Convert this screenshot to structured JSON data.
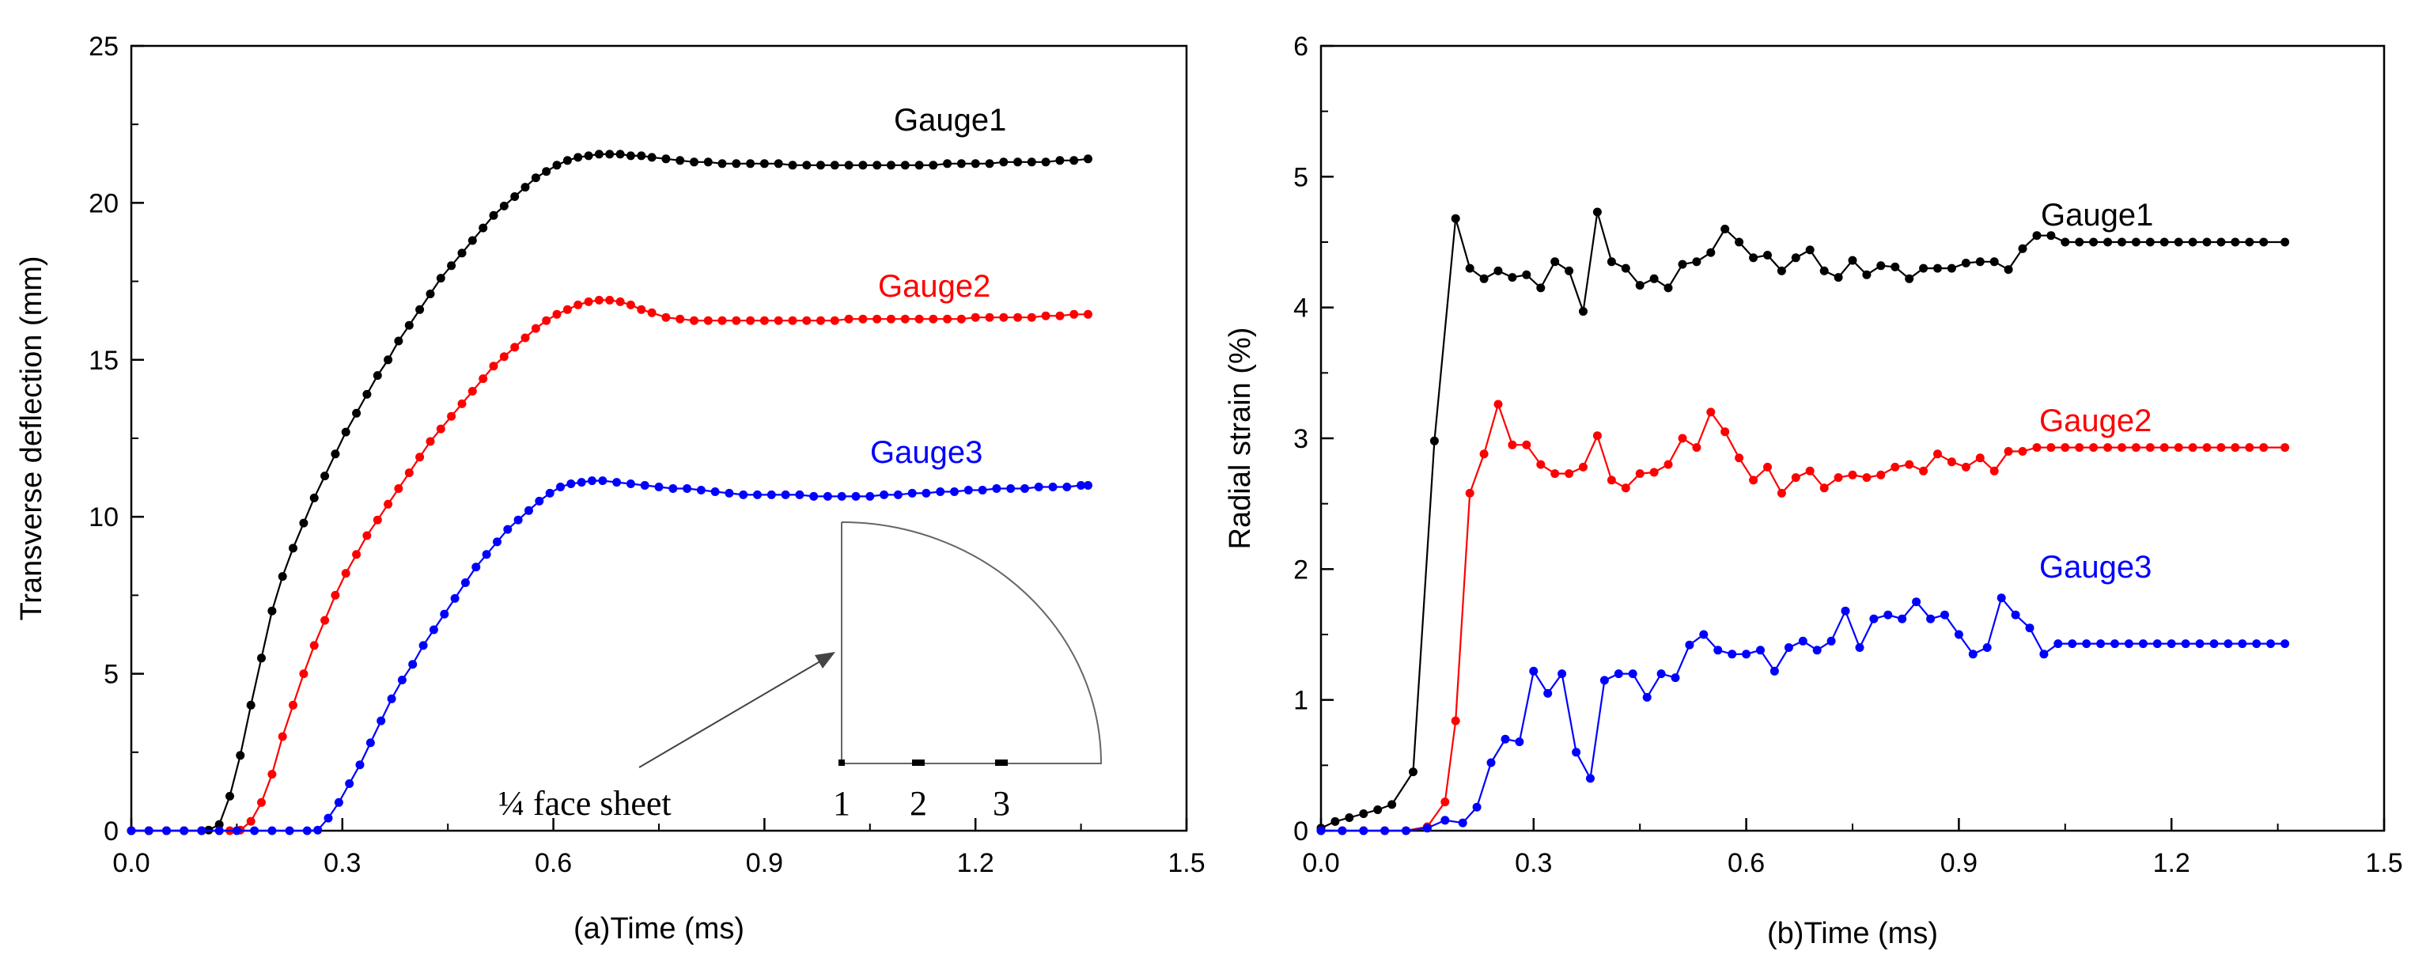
{
  "chart_data": [
    {
      "type": "line",
      "panel": "a",
      "xlabel": "(a)Time (ms)",
      "ylabel": "Transverse deflection (mm)",
      "xlim": [
        0.0,
        1.5
      ],
      "ylim": [
        0,
        25
      ],
      "xticks": [
        "0.0",
        "0.3",
        "0.6",
        "0.9",
        "1.2",
        "1.5"
      ],
      "yticks": [
        "0",
        "5",
        "10",
        "15",
        "20",
        "25"
      ],
      "grid": false,
      "series": [
        {
          "name": "Gauge1",
          "color": "#000000",
          "x": [
            0.0,
            0.025,
            0.05,
            0.075,
            0.1,
            0.11,
            0.125,
            0.14,
            0.155,
            0.17,
            0.185,
            0.2,
            0.215,
            0.23,
            0.245,
            0.26,
            0.275,
            0.29,
            0.305,
            0.32,
            0.335,
            0.35,
            0.365,
            0.38,
            0.395,
            0.41,
            0.425,
            0.44,
            0.455,
            0.47,
            0.485,
            0.5,
            0.515,
            0.53,
            0.545,
            0.56,
            0.575,
            0.59,
            0.605,
            0.62,
            0.635,
            0.65,
            0.665,
            0.68,
            0.695,
            0.71,
            0.725,
            0.74,
            0.76,
            0.78,
            0.8,
            0.82,
            0.84,
            0.86,
            0.88,
            0.9,
            0.92,
            0.94,
            0.96,
            0.98,
            1.0,
            1.02,
            1.04,
            1.06,
            1.08,
            1.1,
            1.12,
            1.14,
            1.16,
            1.18,
            1.2,
            1.22,
            1.24,
            1.26,
            1.28,
            1.3,
            1.32,
            1.34,
            1.36
          ],
          "y": [
            0,
            0,
            0,
            0,
            0,
            0.02,
            0.2,
            1.1,
            2.4,
            4.0,
            5.5,
            7.0,
            8.1,
            9.0,
            9.8,
            10.6,
            11.3,
            12.0,
            12.7,
            13.3,
            13.9,
            14.5,
            15.0,
            15.6,
            16.1,
            16.6,
            17.1,
            17.6,
            18.0,
            18.4,
            18.8,
            19.2,
            19.6,
            19.9,
            20.2,
            20.5,
            20.8,
            21.0,
            21.2,
            21.35,
            21.45,
            21.5,
            21.55,
            21.55,
            21.55,
            21.5,
            21.5,
            21.45,
            21.4,
            21.35,
            21.3,
            21.3,
            21.25,
            21.25,
            21.25,
            21.25,
            21.25,
            21.2,
            21.2,
            21.2,
            21.2,
            21.2,
            21.2,
            21.2,
            21.2,
            21.2,
            21.2,
            21.2,
            21.25,
            21.25,
            21.25,
            21.25,
            21.3,
            21.3,
            21.3,
            21.3,
            21.35,
            21.35,
            21.4
          ]
        },
        {
          "name": "Gauge2",
          "color": "#ff0000",
          "x": [
            0.0,
            0.025,
            0.05,
            0.075,
            0.1,
            0.125,
            0.14,
            0.155,
            0.17,
            0.185,
            0.2,
            0.215,
            0.23,
            0.245,
            0.26,
            0.275,
            0.29,
            0.305,
            0.32,
            0.335,
            0.35,
            0.365,
            0.38,
            0.395,
            0.41,
            0.425,
            0.44,
            0.455,
            0.47,
            0.485,
            0.5,
            0.515,
            0.53,
            0.545,
            0.56,
            0.575,
            0.59,
            0.605,
            0.62,
            0.635,
            0.65,
            0.665,
            0.68,
            0.695,
            0.71,
            0.725,
            0.74,
            0.76,
            0.78,
            0.8,
            0.82,
            0.84,
            0.86,
            0.88,
            0.9,
            0.92,
            0.94,
            0.96,
            0.98,
            1.0,
            1.02,
            1.04,
            1.06,
            1.08,
            1.1,
            1.12,
            1.14,
            1.16,
            1.18,
            1.2,
            1.22,
            1.24,
            1.26,
            1.28,
            1.3,
            1.32,
            1.34,
            1.36
          ],
          "y": [
            0,
            0,
            0,
            0,
            0,
            0,
            0,
            0.02,
            0.3,
            0.9,
            1.8,
            3.0,
            4.0,
            5.0,
            5.9,
            6.7,
            7.5,
            8.2,
            8.8,
            9.4,
            9.9,
            10.4,
            10.9,
            11.4,
            11.9,
            12.4,
            12.8,
            13.2,
            13.6,
            14.0,
            14.4,
            14.8,
            15.1,
            15.4,
            15.7,
            16.0,
            16.25,
            16.45,
            16.6,
            16.75,
            16.85,
            16.9,
            16.9,
            16.85,
            16.75,
            16.6,
            16.5,
            16.35,
            16.3,
            16.25,
            16.25,
            16.25,
            16.25,
            16.25,
            16.25,
            16.25,
            16.25,
            16.25,
            16.25,
            16.25,
            16.3,
            16.3,
            16.3,
            16.3,
            16.3,
            16.3,
            16.3,
            16.3,
            16.3,
            16.35,
            16.35,
            16.35,
            16.35,
            16.35,
            16.4,
            16.4,
            16.45,
            16.45
          ]
        },
        {
          "name": "Gauge3",
          "color": "#0000ff",
          "x": [
            0.0,
            0.025,
            0.05,
            0.075,
            0.1,
            0.125,
            0.15,
            0.175,
            0.2,
            0.225,
            0.25,
            0.265,
            0.28,
            0.295,
            0.31,
            0.325,
            0.34,
            0.355,
            0.37,
            0.385,
            0.4,
            0.415,
            0.43,
            0.445,
            0.46,
            0.475,
            0.49,
            0.505,
            0.52,
            0.535,
            0.55,
            0.565,
            0.58,
            0.595,
            0.61,
            0.625,
            0.64,
            0.655,
            0.67,
            0.69,
            0.71,
            0.73,
            0.75,
            0.77,
            0.79,
            0.81,
            0.83,
            0.85,
            0.87,
            0.89,
            0.91,
            0.93,
            0.95,
            0.97,
            0.99,
            1.01,
            1.03,
            1.05,
            1.07,
            1.09,
            1.11,
            1.13,
            1.15,
            1.17,
            1.19,
            1.21,
            1.23,
            1.25,
            1.27,
            1.29,
            1.31,
            1.33,
            1.35,
            1.36
          ],
          "y": [
            0,
            0,
            0,
            0,
            0,
            0,
            0,
            0,
            0,
            0,
            0,
            0.02,
            0.4,
            0.9,
            1.5,
            2.1,
            2.8,
            3.5,
            4.2,
            4.8,
            5.3,
            5.9,
            6.4,
            6.9,
            7.4,
            7.9,
            8.4,
            8.8,
            9.2,
            9.6,
            9.9,
            10.2,
            10.5,
            10.75,
            10.95,
            11.05,
            11.1,
            11.15,
            11.15,
            11.1,
            11.05,
            11.0,
            10.95,
            10.9,
            10.9,
            10.85,
            10.8,
            10.75,
            10.7,
            10.7,
            10.7,
            10.7,
            10.7,
            10.65,
            10.65,
            10.65,
            10.65,
            10.65,
            10.7,
            10.7,
            10.75,
            10.75,
            10.8,
            10.8,
            10.85,
            10.85,
            10.9,
            10.9,
            10.9,
            10.95,
            10.95,
            10.95,
            11.0,
            11.0
          ]
        }
      ],
      "legend": [
        "Gauge1",
        "Gauge2",
        "Gauge3"
      ],
      "annotation": {
        "text": "¼ face sheet",
        "gauge_labels": [
          "1",
          "2",
          "3"
        ]
      }
    },
    {
      "type": "line",
      "panel": "b",
      "xlabel": "(b)Time (ms)",
      "ylabel": "Radial strain (%)",
      "xlim": [
        0.0,
        1.5
      ],
      "ylim": [
        0,
        6
      ],
      "xticks": [
        "0.0",
        "0.3",
        "0.6",
        "0.9",
        "1.2",
        "1.5"
      ],
      "yticks": [
        "0",
        "1",
        "2",
        "3",
        "4",
        "5",
        "6"
      ],
      "grid": false,
      "series": [
        {
          "name": "Gauge1",
          "color": "#000000",
          "x": [
            0.0,
            0.02,
            0.04,
            0.06,
            0.08,
            0.1,
            0.13,
            0.16,
            0.19,
            0.21,
            0.23,
            0.25,
            0.27,
            0.29,
            0.31,
            0.33,
            0.35,
            0.37,
            0.39,
            0.41,
            0.43,
            0.45,
            0.47,
            0.49,
            0.51,
            0.53,
            0.55,
            0.57,
            0.59,
            0.61,
            0.63,
            0.65,
            0.67,
            0.69,
            0.71,
            0.73,
            0.75,
            0.77,
            0.79,
            0.81,
            0.83,
            0.85,
            0.87,
            0.89,
            0.91,
            0.93,
            0.95,
            0.97,
            0.99,
            1.01,
            1.03,
            1.05,
            1.07,
            1.09,
            1.11,
            1.13,
            1.15,
            1.17,
            1.19,
            1.21,
            1.23,
            1.25,
            1.27,
            1.29,
            1.31,
            1.33,
            1.36
          ],
          "y": [
            0.02,
            0.07,
            0.1,
            0.13,
            0.16,
            0.2,
            0.45,
            2.98,
            4.68,
            4.3,
            4.22,
            4.28,
            4.23,
            4.25,
            4.15,
            4.35,
            4.28,
            3.97,
            4.73,
            4.35,
            4.3,
            4.17,
            4.22,
            4.15,
            4.33,
            4.35,
            4.42,
            4.6,
            4.5,
            4.38,
            4.4,
            4.28,
            4.38,
            4.44,
            4.28,
            4.23,
            4.36,
            4.25,
            4.32,
            4.31,
            4.22,
            4.3,
            4.3,
            4.3,
            4.34,
            4.35,
            4.35,
            4.29,
            4.45,
            4.55,
            4.55,
            4.5,
            4.5,
            4.5,
            4.5,
            4.5,
            4.5,
            4.5,
            4.5,
            4.5,
            4.5,
            4.5,
            4.5,
            4.5,
            4.5,
            4.5,
            4.5
          ]
        },
        {
          "name": "Gauge2",
          "color": "#ff0000",
          "x": [
            0.0,
            0.03,
            0.06,
            0.09,
            0.12,
            0.15,
            0.175,
            0.19,
            0.21,
            0.23,
            0.25,
            0.27,
            0.29,
            0.31,
            0.33,
            0.35,
            0.37,
            0.39,
            0.41,
            0.43,
            0.45,
            0.47,
            0.49,
            0.51,
            0.53,
            0.55,
            0.57,
            0.59,
            0.61,
            0.63,
            0.65,
            0.67,
            0.69,
            0.71,
            0.73,
            0.75,
            0.77,
            0.79,
            0.81,
            0.83,
            0.85,
            0.87,
            0.89,
            0.91,
            0.93,
            0.95,
            0.97,
            0.99,
            1.01,
            1.03,
            1.05,
            1.07,
            1.09,
            1.11,
            1.13,
            1.15,
            1.17,
            1.19,
            1.21,
            1.23,
            1.25,
            1.27,
            1.29,
            1.31,
            1.33,
            1.36
          ],
          "y": [
            0,
            0,
            0,
            0,
            0,
            0.03,
            0.22,
            0.84,
            2.58,
            2.88,
            3.26,
            2.95,
            2.95,
            2.8,
            2.73,
            2.73,
            2.78,
            3.02,
            2.68,
            2.62,
            2.73,
            2.74,
            2.8,
            3.0,
            2.93,
            3.2,
            3.05,
            2.85,
            2.68,
            2.78,
            2.58,
            2.7,
            2.75,
            2.62,
            2.7,
            2.72,
            2.7,
            2.72,
            2.78,
            2.8,
            2.75,
            2.88,
            2.82,
            2.78,
            2.85,
            2.75,
            2.9,
            2.9,
            2.93,
            2.93,
            2.93,
            2.93,
            2.93,
            2.93,
            2.93,
            2.93,
            2.93,
            2.93,
            2.93,
            2.93,
            2.93,
            2.93,
            2.93,
            2.93,
            2.93,
            2.93
          ]
        },
        {
          "name": "Gauge3",
          "color": "#0000ff",
          "x": [
            0.0,
            0.03,
            0.06,
            0.09,
            0.12,
            0.15,
            0.175,
            0.2,
            0.22,
            0.24,
            0.26,
            0.28,
            0.3,
            0.32,
            0.34,
            0.36,
            0.38,
            0.4,
            0.42,
            0.44,
            0.46,
            0.48,
            0.5,
            0.52,
            0.54,
            0.56,
            0.58,
            0.6,
            0.62,
            0.64,
            0.66,
            0.68,
            0.7,
            0.72,
            0.74,
            0.76,
            0.78,
            0.8,
            0.82,
            0.84,
            0.86,
            0.88,
            0.9,
            0.92,
            0.94,
            0.96,
            0.98,
            1.0,
            1.02,
            1.04,
            1.06,
            1.08,
            1.1,
            1.12,
            1.14,
            1.16,
            1.18,
            1.2,
            1.22,
            1.24,
            1.26,
            1.28,
            1.3,
            1.32,
            1.34,
            1.36
          ],
          "y": [
            0,
            0,
            0,
            0,
            0,
            0.02,
            0.08,
            0.06,
            0.18,
            0.52,
            0.7,
            0.68,
            1.22,
            1.05,
            1.2,
            0.6,
            0.4,
            1.15,
            1.2,
            1.2,
            1.02,
            1.2,
            1.17,
            1.42,
            1.5,
            1.38,
            1.35,
            1.35,
            1.38,
            1.22,
            1.4,
            1.45,
            1.38,
            1.45,
            1.68,
            1.4,
            1.62,
            1.65,
            1.62,
            1.75,
            1.62,
            1.65,
            1.5,
            1.35,
            1.4,
            1.78,
            1.65,
            1.55,
            1.35,
            1.43,
            1.43,
            1.43,
            1.43,
            1.43,
            1.43,
            1.43,
            1.43,
            1.43,
            1.43,
            1.43,
            1.43,
            1.43,
            1.43,
            1.43,
            1.43,
            1.43
          ]
        }
      ],
      "legend": [
        "Gauge1",
        "Gauge2",
        "Gauge3"
      ]
    }
  ]
}
